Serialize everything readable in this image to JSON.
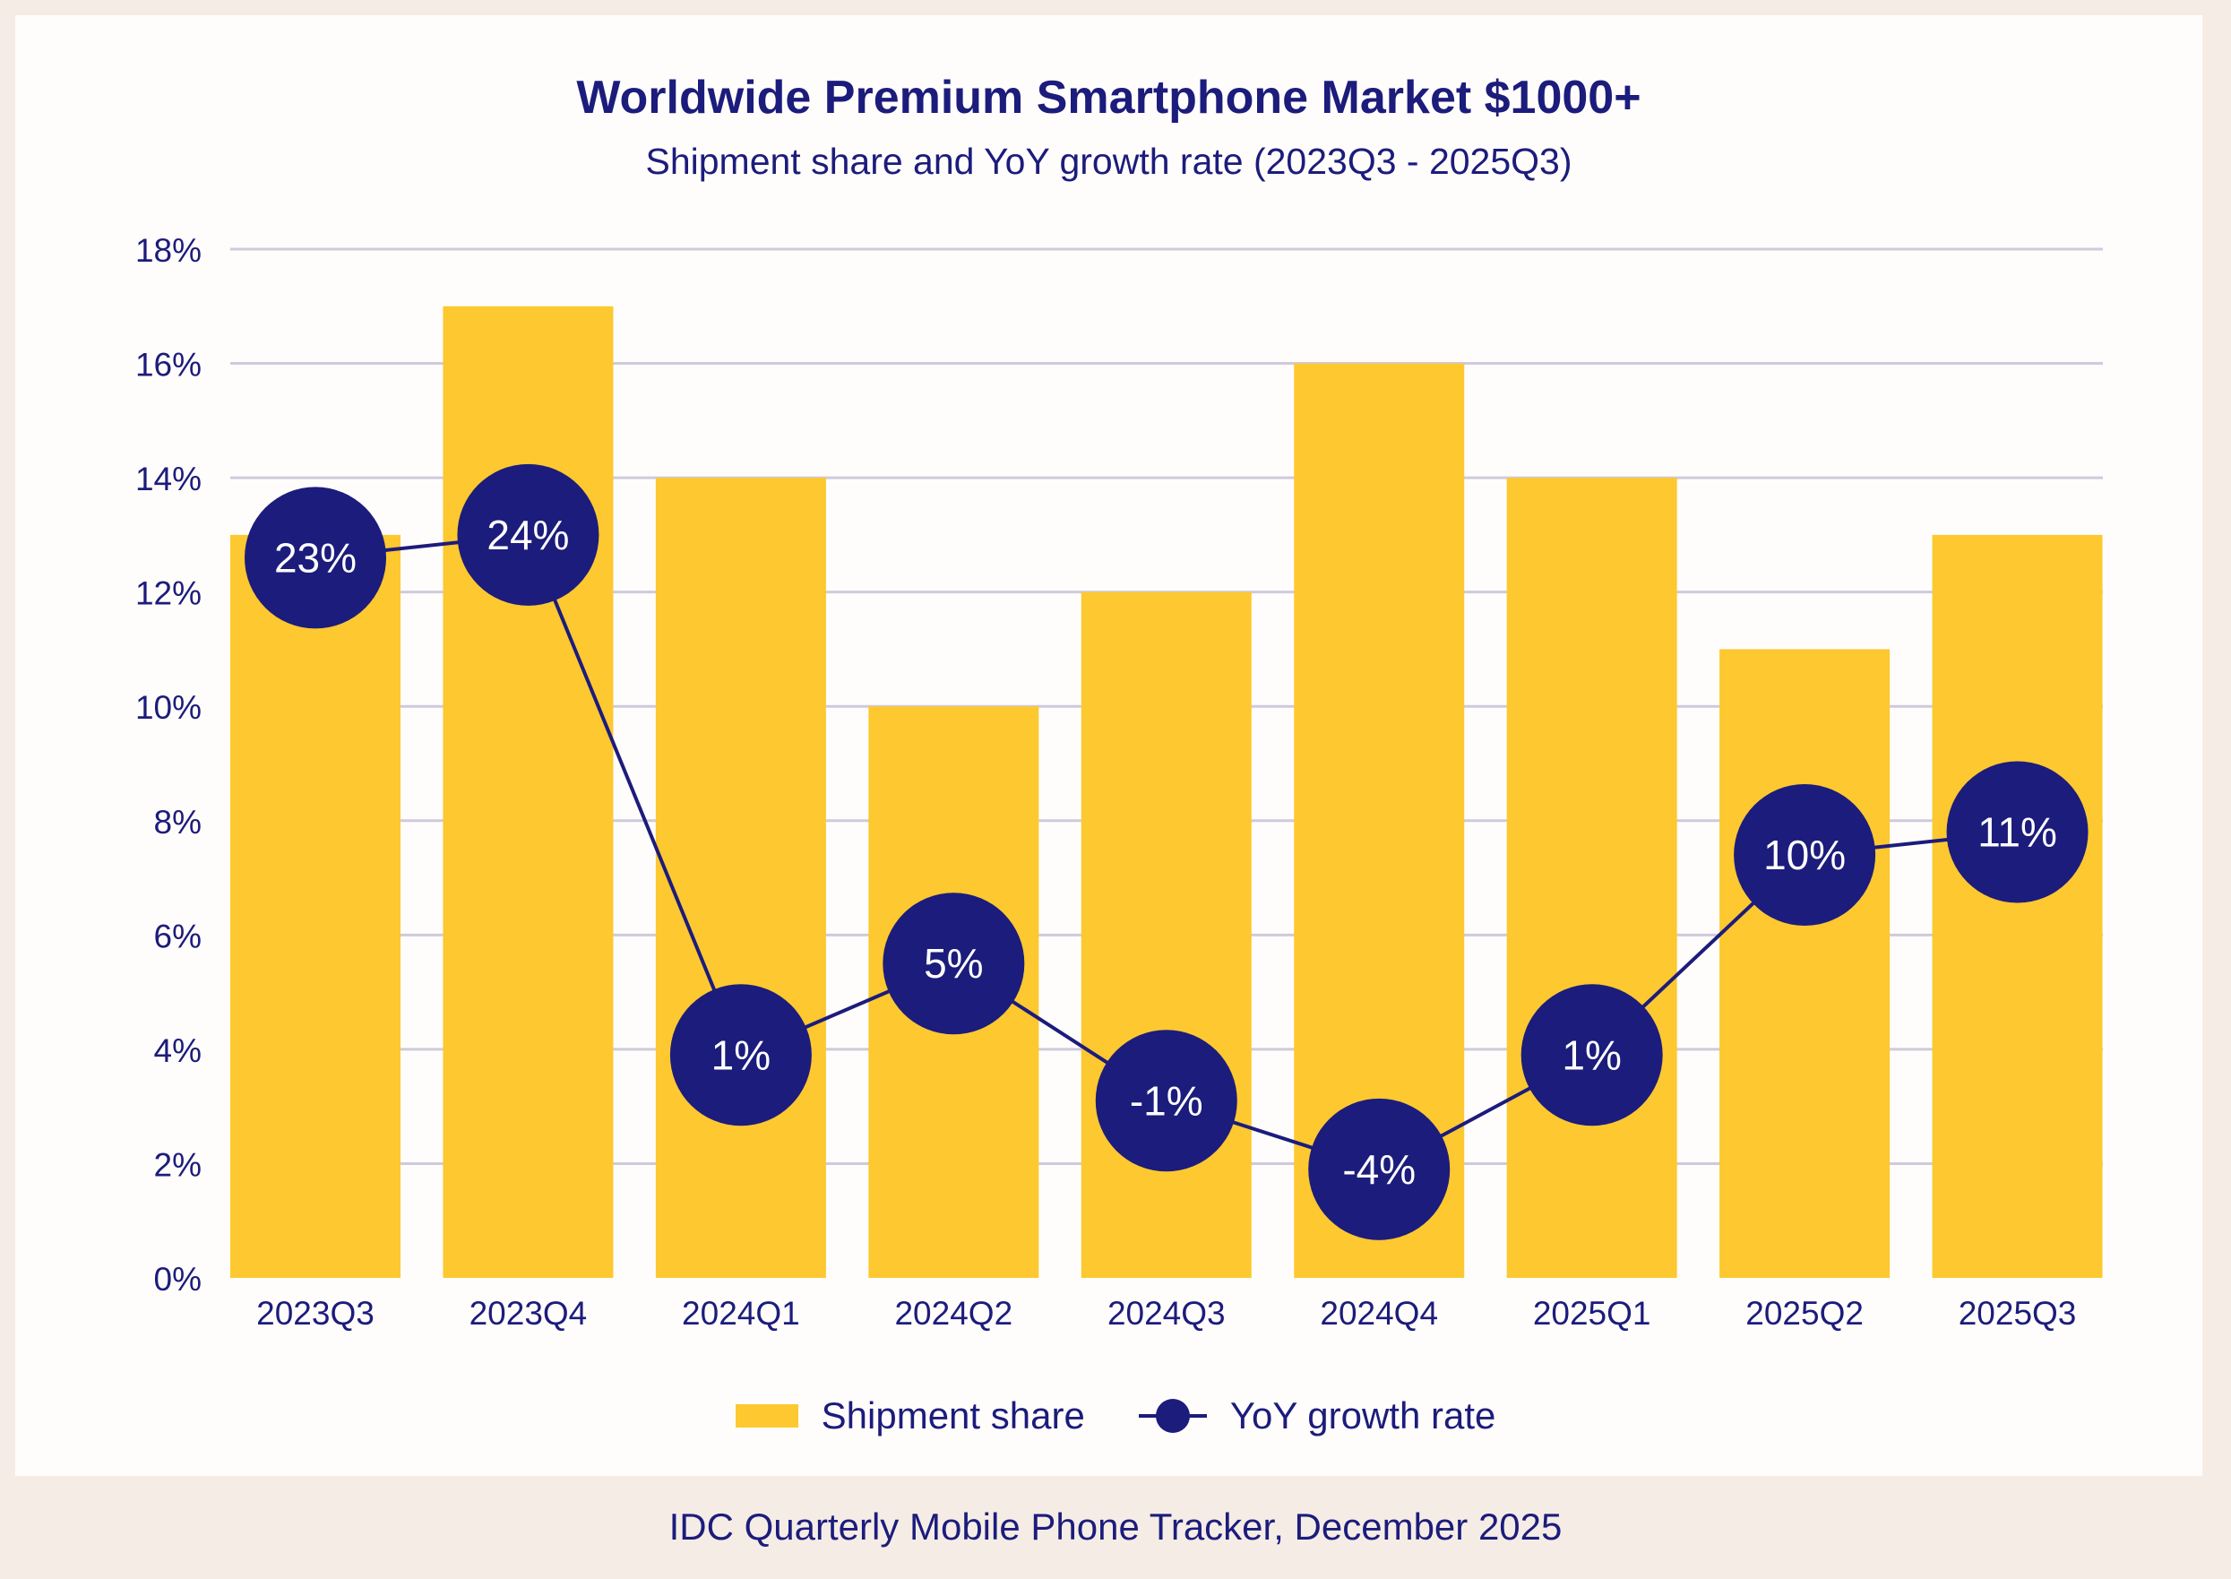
{
  "title": "Worldwide Premium Smartphone Market $1000+",
  "subtitle": "Shipment share and YoY growth rate (2023Q3 - 2025Q3)",
  "source": "IDC Quarterly Mobile Phone Tracker, December 2025",
  "colors": {
    "bar": "#fdc830",
    "line": "#1c1c7c",
    "text": "#1c1c7c",
    "grid": "#cfcadb"
  },
  "chart_data": {
    "type": "bar",
    "title": "Worldwide Premium Smartphone Market $1000+",
    "subtitle": "Shipment share and YoY growth rate (2023Q3 - 2025Q3)",
    "xlabel": "",
    "ylabel": "",
    "categories": [
      "2023Q3",
      "2023Q4",
      "2024Q1",
      "2024Q2",
      "2024Q3",
      "2024Q4",
      "2025Q1",
      "2025Q2",
      "2025Q3"
    ],
    "ylim": [
      0,
      18
    ],
    "yticks": [
      0,
      2,
      4,
      6,
      8,
      10,
      12,
      14,
      16,
      18
    ],
    "ytick_labels": [
      "0%",
      "2%",
      "4%",
      "6%",
      "8%",
      "10%",
      "12%",
      "14%",
      "16%",
      "18%"
    ],
    "grid": true,
    "legend_position": "bottom",
    "series": [
      {
        "name": "Shipment share",
        "type": "bar",
        "values": [
          13,
          17,
          14,
          10,
          12,
          16,
          14,
          11,
          13
        ]
      },
      {
        "name": "YoY growth rate",
        "type": "line",
        "values": [
          23,
          24,
          1,
          5,
          -1,
          -4,
          1,
          10,
          11
        ],
        "labels": [
          "23%",
          "24%",
          "1%",
          "5%",
          "-1%",
          "-4%",
          "1%",
          "10%",
          "11%"
        ],
        "plot_positions_on_share_axis": [
          12.6,
          13.0,
          3.9,
          5.5,
          3.1,
          1.9,
          3.9,
          7.4,
          7.8
        ]
      }
    ]
  },
  "legend": {
    "items": [
      {
        "label": "Shipment share"
      },
      {
        "label": "YoY growth rate"
      }
    ]
  }
}
